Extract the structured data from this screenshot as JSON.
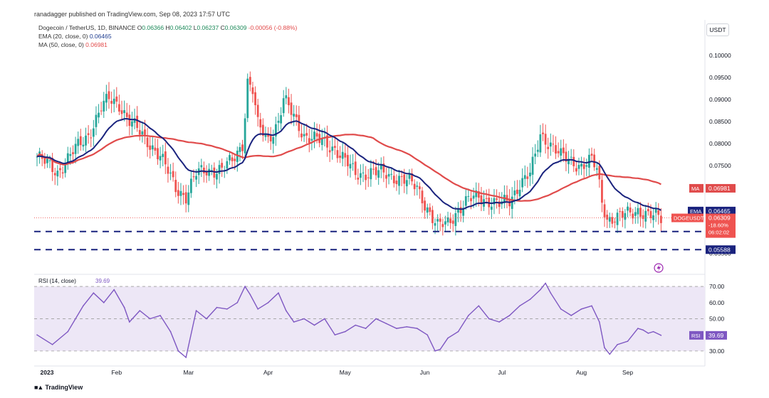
{
  "publisher": "ranadagger published on TradingView.com, Sep 08, 2023 17:57 UTC",
  "symbol_line": {
    "name": "Dogecoin / TetherUS, 1D, BINANCE",
    "o_label": "O",
    "o": "0.06366",
    "h_label": "H",
    "h": "0.06402",
    "l_label": "L",
    "l": "0.06237",
    "c_label": "C",
    "c": "0.06309",
    "change": "-0.00056 (-0.88%)"
  },
  "ema_line": {
    "label": "EMA (20, close, 0)",
    "value": "0.06465"
  },
  "ma_line": {
    "label": "MA (50, close, 0)",
    "value": "0.06981"
  },
  "currency": "USDT",
  "brand": "TradingView",
  "icons": {
    "lightning": "lightning-icon",
    "logo": "tradingview-logo-icon"
  },
  "colors": {
    "up": "#26a69a",
    "down": "#ef5350",
    "ema": "#1a237e",
    "ma": "#e04b4b",
    "support": "#1a237e",
    "rsi": "#7e57c2",
    "rsi_band": "#ede7f6"
  },
  "chart_data": [
    {
      "type": "candlestick",
      "title": "Dogecoin / TetherUS, 1D, BINANCE",
      "ylim": [
        0.0535,
        0.1045
      ],
      "y_ticks": [
        "0.10000",
        "0.09500",
        "0.09000",
        "0.08500",
        "0.08000",
        "0.07500",
        "0.07000",
        "0.06500",
        "0.06000",
        "0.05500"
      ],
      "x_labels": [
        "2023",
        "Feb",
        "Mar",
        "Apr",
        "May",
        "Jun",
        "Jul",
        "Aug",
        "Sep"
      ],
      "price_anchors_close": [
        [
          0,
          0.077
        ],
        [
          8,
          0.0735
        ],
        [
          14,
          0.078
        ],
        [
          20,
          0.082
        ],
        [
          25,
          0.088
        ],
        [
          28,
          0.09
        ],
        [
          32,
          0.089
        ],
        [
          36,
          0.085
        ],
        [
          40,
          0.0825
        ],
        [
          44,
          0.08
        ],
        [
          48,
          0.077
        ],
        [
          54,
          0.07
        ],
        [
          58,
          0.068
        ],
        [
          62,
          0.073
        ],
        [
          66,
          0.074
        ],
        [
          72,
          0.074
        ],
        [
          76,
          0.076
        ],
        [
          80,
          0.08
        ],
        [
          82,
          0.094
        ],
        [
          84,
          0.092
        ],
        [
          86,
          0.084
        ],
        [
          90,
          0.081
        ],
        [
          94,
          0.085
        ],
        [
          96,
          0.09
        ],
        [
          100,
          0.086
        ],
        [
          104,
          0.082
        ],
        [
          110,
          0.0805
        ],
        [
          116,
          0.079
        ],
        [
          120,
          0.076
        ],
        [
          124,
          0.073
        ],
        [
          130,
          0.0735
        ],
        [
          136,
          0.073
        ],
        [
          142,
          0.072
        ],
        [
          148,
          0.07
        ],
        [
          154,
          0.063
        ],
        [
          156,
          0.061
        ],
        [
          160,
          0.062
        ],
        [
          164,
          0.065
        ],
        [
          168,
          0.067
        ],
        [
          172,
          0.068
        ],
        [
          176,
          0.067
        ],
        [
          180,
          0.066
        ],
        [
          184,
          0.067
        ],
        [
          188,
          0.071
        ],
        [
          192,
          0.073
        ],
        [
          194,
          0.077
        ],
        [
          196,
          0.082
        ],
        [
          200,
          0.08
        ],
        [
          204,
          0.077
        ],
        [
          208,
          0.076
        ],
        [
          212,
          0.075
        ],
        [
          216,
          0.076
        ],
        [
          218,
          0.074
        ],
        [
          220,
          0.067
        ],
        [
          222,
          0.063
        ],
        [
          226,
          0.063
        ],
        [
          230,
          0.064
        ],
        [
          234,
          0.065
        ],
        [
          238,
          0.0635
        ],
        [
          243,
          0.0631
        ]
      ],
      "series": [
        {
          "name": "DOGEUSDT",
          "last": "0.06309",
          "change_pct": "-18.60%",
          "countdown": "06:02:02"
        },
        {
          "name": "EMA",
          "period": 20,
          "last": "0.06465"
        },
        {
          "name": "MA",
          "period": 50,
          "last": "0.06981"
        }
      ],
      "horizontal_levels": [
        {
          "name": "support-1",
          "value": 0.06,
          "label": "0.06000"
        },
        {
          "name": "support-2",
          "value": 0.05588,
          "label": "0.05588"
        }
      ]
    },
    {
      "type": "line",
      "title": "RSI (14, close)",
      "last": "39.69",
      "series_label": "RSI",
      "ylim": [
        22,
        74
      ],
      "y_ticks": [
        "70.00",
        "60.00",
        "50.00",
        "40.00",
        "30.00"
      ],
      "band": [
        30,
        70
      ],
      "midline": 50,
      "x_values": [
        0,
        6,
        12,
        18,
        22,
        26,
        30,
        34,
        36,
        40,
        44,
        48,
        52,
        55,
        58,
        62,
        66,
        70,
        74,
        78,
        81,
        83,
        86,
        90,
        94,
        97,
        100,
        104,
        108,
        112,
        116,
        120,
        124,
        128,
        132,
        136,
        140,
        144,
        148,
        152,
        155,
        157,
        160,
        164,
        168,
        172,
        176,
        180,
        184,
        188,
        192,
        196,
        198,
        200,
        204,
        208,
        212,
        216,
        219,
        221,
        223,
        226,
        230,
        234,
        236,
        238,
        240,
        243
      ],
      "values": [
        40,
        34,
        42,
        58,
        66,
        60,
        68,
        57,
        48,
        55,
        50,
        52,
        42,
        30,
        26,
        55,
        50,
        57,
        56,
        60,
        70,
        65,
        56,
        60,
        66,
        55,
        48,
        50,
        46,
        50,
        40,
        42,
        46,
        44,
        50,
        47,
        44,
        45,
        44,
        40,
        30,
        31,
        38,
        42,
        52,
        58,
        50,
        48,
        52,
        58,
        62,
        68,
        72,
        66,
        56,
        52,
        56,
        58,
        48,
        32,
        28,
        34,
        36,
        44,
        43,
        41,
        42,
        39.7
      ]
    }
  ]
}
